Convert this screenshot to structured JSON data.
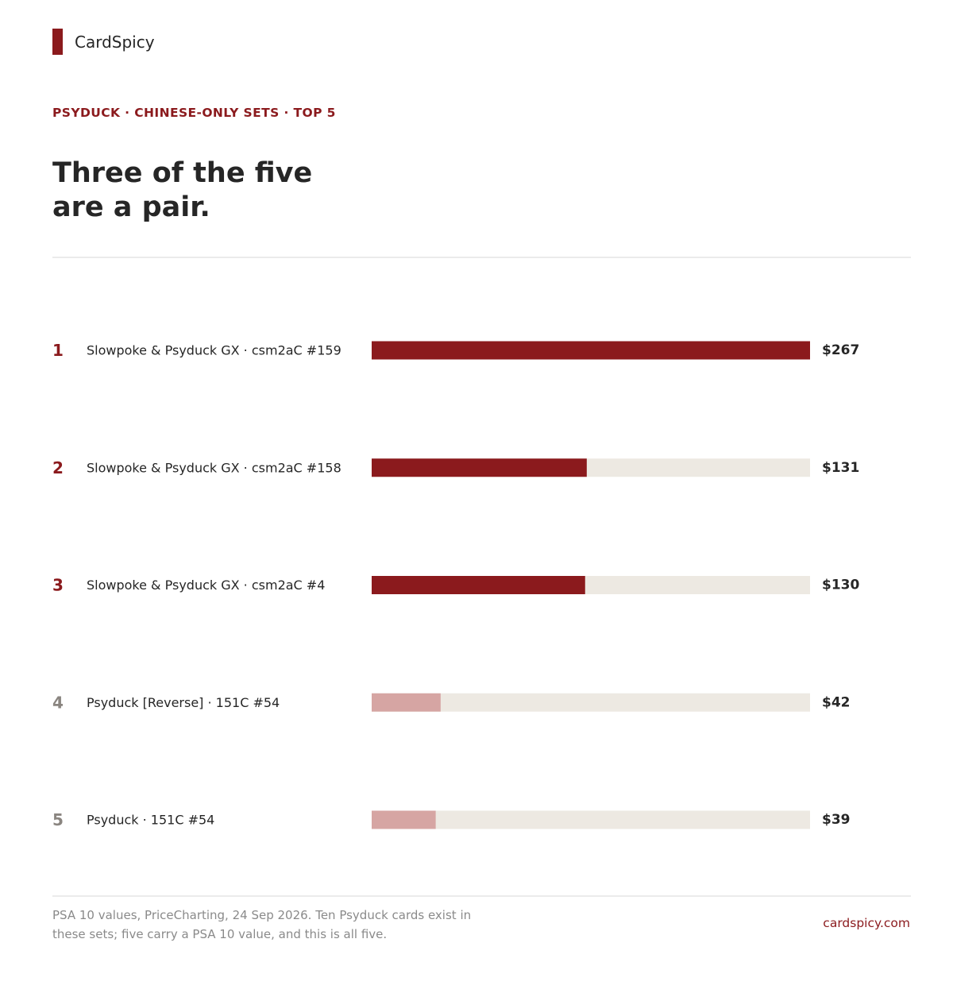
{
  "brand": {
    "name": "CardSpicy"
  },
  "kicker": "PSYDUCK · CHINESE-ONLY SETS · TOP 5",
  "headline": {
    "line1": "Three of the five",
    "line2": "are a pair."
  },
  "footnote": {
    "line1": "PSA 10 values, PriceCharting, 24 Sep 2026. Ten Psyduck cards exist in",
    "line2": "these sets; five carry a PSA 10 value, and this is all five."
  },
  "site": "cardspicy.com",
  "colors": {
    "accent": "#8b1a1d",
    "accent_light": "#d6a5a3",
    "track": "#ede9e2",
    "rank_muted": "#8a8580",
    "text": "#262626"
  },
  "chart_data": {
    "type": "bar",
    "orientation": "horizontal",
    "xlim": [
      0,
      267
    ],
    "grid": false,
    "categories": [
      "Slowpoke & Psyduck GX · csm2aC #159",
      "Slowpoke & Psyduck GX · csm2aC #158",
      "Slowpoke & Psyduck GX · csm2aC #4",
      "Psyduck [Reverse] · 151C #54",
      "Psyduck · 151C #54"
    ],
    "ranks": [
      "1",
      "2",
      "3",
      "4",
      "5"
    ],
    "values": [
      267,
      131,
      130,
      42,
      39
    ],
    "value_labels": [
      "$267",
      "$131",
      "$130",
      "$42",
      "$39"
    ],
    "highlighted": [
      true,
      true,
      true,
      false,
      false
    ]
  }
}
